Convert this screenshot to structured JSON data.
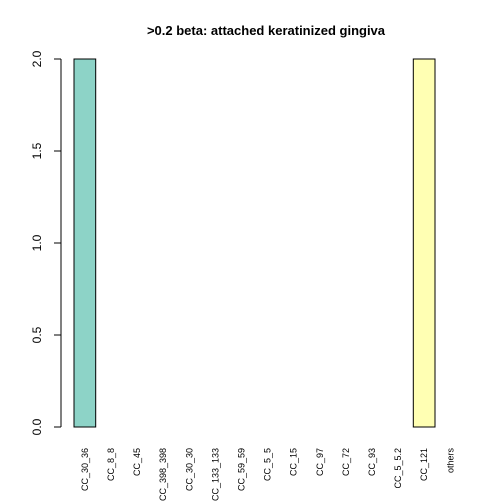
{
  "chart_data": {
    "type": "bar",
    "title": ">0.2 beta:  attached keratinized gingiva",
    "xlabel": "",
    "ylabel": "",
    "ylim": [
      0,
      2
    ],
    "yticks": [
      "0.0",
      "0.5",
      "1.0",
      "1.5",
      "2.0"
    ],
    "grid": false,
    "categories": [
      "CC_30_36",
      "CC_8_8",
      "CC_45",
      "CC_398_398",
      "CC_30_30",
      "CC_133_133",
      "CC_59_59",
      "CC_5_5",
      "CC_15",
      "CC_97",
      "CC_72",
      "CC_93",
      "CC_5_5.2",
      "CC_121",
      "others"
    ],
    "values": [
      2,
      0,
      0,
      0,
      0,
      0,
      0,
      0,
      0,
      0,
      0,
      0,
      0,
      2,
      0
    ],
    "colors": [
      "#8DD3C7",
      "#8DD3C7",
      "#8DD3C7",
      "#8DD3C7",
      "#8DD3C7",
      "#8DD3C7",
      "#8DD3C7",
      "#8DD3C7",
      "#8DD3C7",
      "#8DD3C7",
      "#8DD3C7",
      "#8DD3C7",
      "#8DD3C7",
      "#FFFFB3",
      "#FFFFB3"
    ]
  }
}
